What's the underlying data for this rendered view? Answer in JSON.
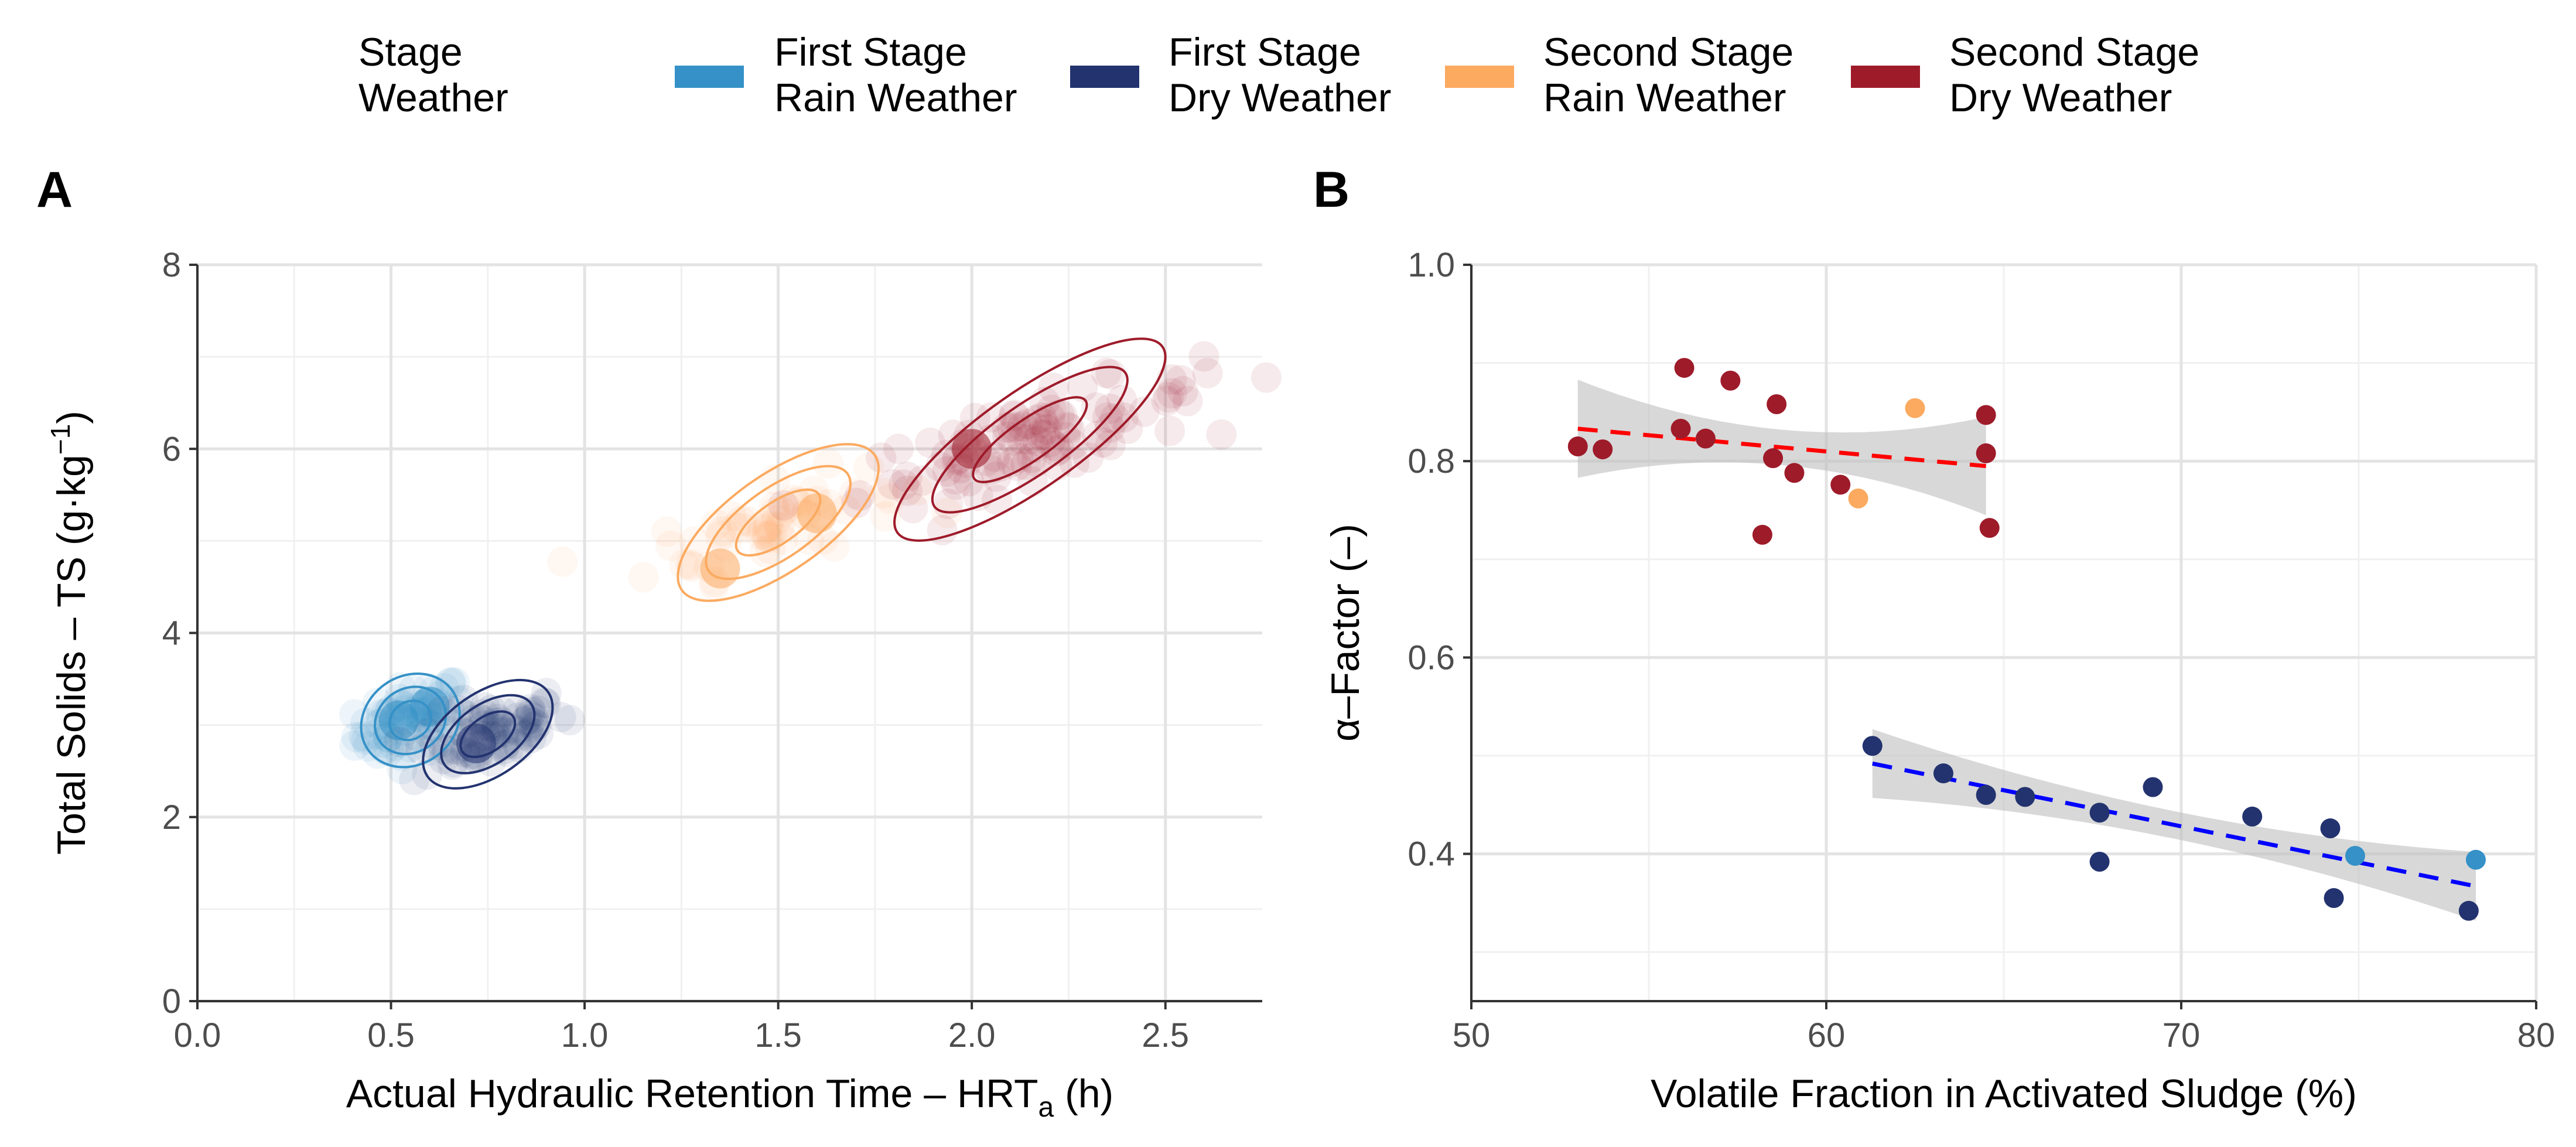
{
  "legend": {
    "title_line1": "Stage",
    "title_line2": "Weather",
    "items": [
      {
        "key": "fs_rain",
        "line1": "First Stage",
        "line2": "Rain Weather",
        "color": "#3591C7"
      },
      {
        "key": "fs_dry",
        "line1": "First Stage",
        "line2": "Dry Weather",
        "color": "#23336F"
      },
      {
        "key": "ss_rain",
        "line1": "Second Stage",
        "line2": "Rain Weather",
        "color": "#FBAA60"
      },
      {
        "key": "ss_dry",
        "line1": "Second Stage",
        "line2": "Dry Weather",
        "color": "#9E1B2A"
      }
    ]
  },
  "chart_data": [
    {
      "panel": "A",
      "type": "scatter",
      "xlabel_main": "Actual Hydraulic Retention Time – HRT",
      "xlabel_sub": "a",
      "xlabel_end": " (h)",
      "ylabel_main": "Total Solids – TS (g·kg",
      "ylabel_sup": "−1",
      "ylabel_end": ")",
      "xlim": [
        0,
        2.75
      ],
      "ylim": [
        0,
        8
      ],
      "xticks": [
        0,
        0.5,
        1,
        1.5,
        2,
        2.5
      ],
      "xtick_labels": [
        "0.0",
        "0.5",
        "1.0",
        "1.5",
        "2.0",
        "2.5"
      ],
      "yticks": [
        0,
        2,
        4,
        6,
        8
      ],
      "ytick_labels": [
        "0",
        "2",
        "4",
        "6",
        "8"
      ],
      "grid": true,
      "series": [
        {
          "name": "First Stage Rain Weather",
          "color": "#3591C7",
          "center": [
            0.55,
            3.05
          ],
          "spread": [
            0.07,
            0.32
          ],
          "n": 70,
          "density_peaks": [
            {
              "x": 0.52,
              "y": 3.05
            },
            {
              "x": 0.6,
              "y": 3.2
            }
          ]
        },
        {
          "name": "First Stage Dry Weather",
          "color": "#23336F",
          "center": [
            0.75,
            2.9
          ],
          "spread": [
            0.1,
            0.3
          ],
          "n": 80,
          "density_peaks": [
            {
              "x": 0.72,
              "y": 2.8
            }
          ]
        },
        {
          "name": "Second Stage Rain Weather",
          "color": "#FBAA60",
          "center": [
            1.5,
            5.2
          ],
          "spread": [
            0.16,
            0.35
          ],
          "n": 60,
          "density_peaks": [
            {
              "x": 1.35,
              "y": 4.7
            },
            {
              "x": 1.6,
              "y": 5.3
            }
          ]
        },
        {
          "name": "Second Stage Dry Weather",
          "color": "#9E1B2A",
          "center": [
            2.15,
            6.1
          ],
          "spread": [
            0.22,
            0.35
          ],
          "n": 110,
          "density_peaks": [
            {
              "x": 2.0,
              "y": 6.0
            }
          ]
        }
      ]
    },
    {
      "panel": "B",
      "type": "scatter",
      "xlabel": "Volatile Fraction in Activated Sludge (%)",
      "ylabel": "α–Factor (–)",
      "xlim": [
        50,
        80
      ],
      "ylim": [
        0.25,
        1.0
      ],
      "xticks": [
        50,
        60,
        70,
        80
      ],
      "xtick_labels": [
        "50",
        "60",
        "70",
        "80"
      ],
      "yticks": [
        0.4,
        0.6,
        0.8,
        1.0
      ],
      "ytick_labels": [
        "0.4",
        "0.6",
        "0.8",
        "1.0"
      ],
      "grid": true,
      "series": [
        {
          "name": "Second Stage Dry Weather",
          "color": "#9E1B2A",
          "points": [
            [
              53.0,
              0.815
            ],
            [
              53.7,
              0.812
            ],
            [
              55.9,
              0.833
            ],
            [
              56.0,
              0.895
            ],
            [
              56.6,
              0.823
            ],
            [
              57.3,
              0.882
            ],
            [
              58.2,
              0.725
            ],
            [
              58.5,
              0.803
            ],
            [
              58.6,
              0.858
            ],
            [
              59.1,
              0.788
            ],
            [
              60.4,
              0.776
            ],
            [
              64.5,
              0.847
            ],
            [
              64.5,
              0.808
            ],
            [
              64.6,
              0.732
            ]
          ]
        },
        {
          "name": "Second Stage Rain Weather",
          "color": "#FBAA60",
          "points": [
            [
              60.9,
              0.762
            ],
            [
              62.5,
              0.854
            ]
          ]
        },
        {
          "name": "First Stage Dry Weather",
          "color": "#23336F",
          "points": [
            [
              61.3,
              0.51
            ],
            [
              63.3,
              0.482
            ],
            [
              64.5,
              0.46
            ],
            [
              65.6,
              0.458
            ],
            [
              67.7,
              0.442
            ],
            [
              67.7,
              0.392
            ],
            [
              69.2,
              0.468
            ],
            [
              72.0,
              0.438
            ],
            [
              74.2,
              0.426
            ],
            [
              74.3,
              0.355
            ],
            [
              78.1,
              0.342
            ]
          ]
        },
        {
          "name": "First Stage Rain Weather",
          "color": "#3591C7",
          "points": [
            [
              74.9,
              0.398
            ],
            [
              78.3,
              0.394
            ]
          ]
        }
      ],
      "fits": [
        {
          "name": "Second Stage fit",
          "color": "#FF0000",
          "x": [
            53,
            64.5
          ],
          "y": [
            0.833,
            0.795
          ],
          "ci_half_width_ends": 0.05,
          "ci_half_width_mid": 0.018
        },
        {
          "name": "First Stage fit",
          "color": "#0000FF",
          "x": [
            61.3,
            78.3
          ],
          "y": [
            0.492,
            0.367
          ],
          "ci_half_width_ends": 0.035,
          "ci_half_width_mid": 0.014
        }
      ]
    }
  ]
}
